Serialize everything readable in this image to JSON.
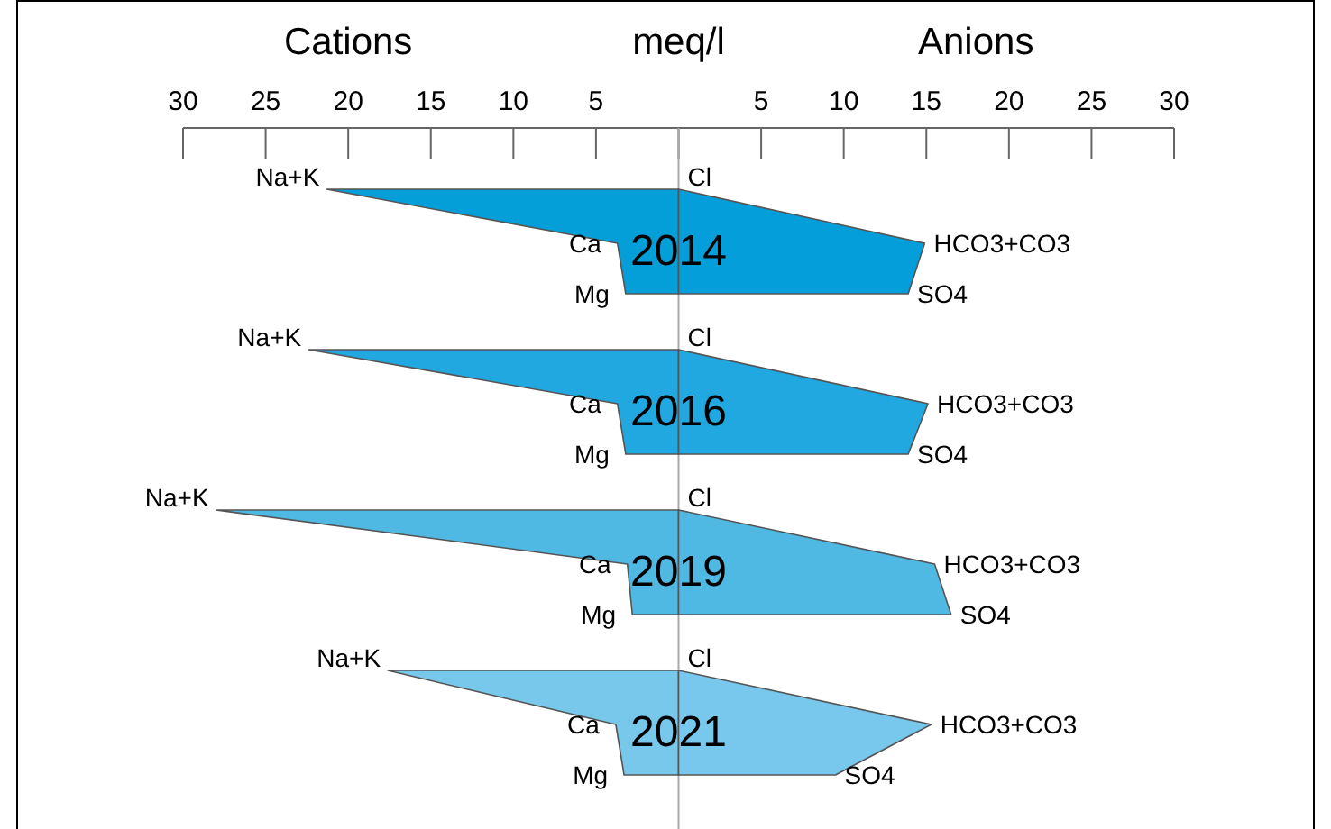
{
  "chart_data": {
    "type": "area",
    "orientation": "horizontal",
    "xlabel": "meq/l",
    "annotations": [
      "Cations",
      "Anions"
    ],
    "categories": [
      "Na+K",
      "Ca",
      "Mg",
      "Na+K",
      "Ca",
      "Mg",
      "Na+K",
      "Ca",
      "Mg",
      "Na+K",
      "Ca",
      "Mg"
    ],
    "y2_categories": [
      "Cl",
      "HCO3+CO3",
      "SO4",
      "Cl",
      "HCO3+CO3",
      "SO4",
      "Cl",
      "HCO3+CO3",
      "SO4",
      "Cl",
      "HCO3+CO3",
      "SO4"
    ],
    "xlim": [
      -30,
      30
    ],
    "xticks": [
      {
        "value": -30,
        "label": "30"
      },
      {
        "value": -25,
        "label": "25"
      },
      {
        "value": -20,
        "label": "20"
      },
      {
        "value": -15,
        "label": "15"
      },
      {
        "value": -10,
        "label": "10"
      },
      {
        "value": -5,
        "label": "5"
      },
      {
        "value": 0,
        "label": null
      },
      5,
      10,
      15,
      20,
      25,
      30
    ],
    "series": [
      {
        "name": "2014",
        "color": "#049fd9",
        "values": [
          -21.3,
          -3.7,
          -3.2,
          null,
          null,
          null,
          null,
          null,
          null,
          null,
          null,
          null
        ]
      },
      {
        "color": "#049fda",
        "values": [
          0,
          14.9,
          13.9,
          null,
          null,
          null,
          null,
          null,
          null,
          null,
          null,
          null
        ]
      },
      {
        "name": "2016",
        "color": "#22a8e0",
        "values": [
          null,
          null,
          null,
          -22.4,
          -3.7,
          -3.2,
          null,
          null,
          null,
          null,
          null,
          null
        ]
      },
      {
        "color": "#22a8e1",
        "values": [
          null,
          null,
          null,
          0,
          15.1,
          13.9,
          null,
          null,
          null,
          null,
          null,
          null
        ]
      },
      {
        "name": "2019",
        "color": "#4fb9e3",
        "values": [
          null,
          null,
          null,
          null,
          null,
          null,
          -28.0,
          -3.1,
          -2.8,
          null,
          null,
          null
        ]
      },
      {
        "color": "#4fb9e4",
        "values": [
          null,
          null,
          null,
          null,
          null,
          null,
          0,
          15.5,
          16.5,
          null,
          null,
          null
        ]
      },
      {
        "name": "2021",
        "color": "#77c8eb",
        "values": [
          null,
          null,
          null,
          null,
          null,
          null,
          null,
          null,
          null,
          -17.6,
          -3.8,
          -3.3
        ]
      },
      {
        "color": "#77c8ec",
        "values": [
          null,
          null,
          null,
          null,
          null,
          null,
          null,
          null,
          null,
          0,
          15.3,
          9.5
        ]
      }
    ]
  }
}
